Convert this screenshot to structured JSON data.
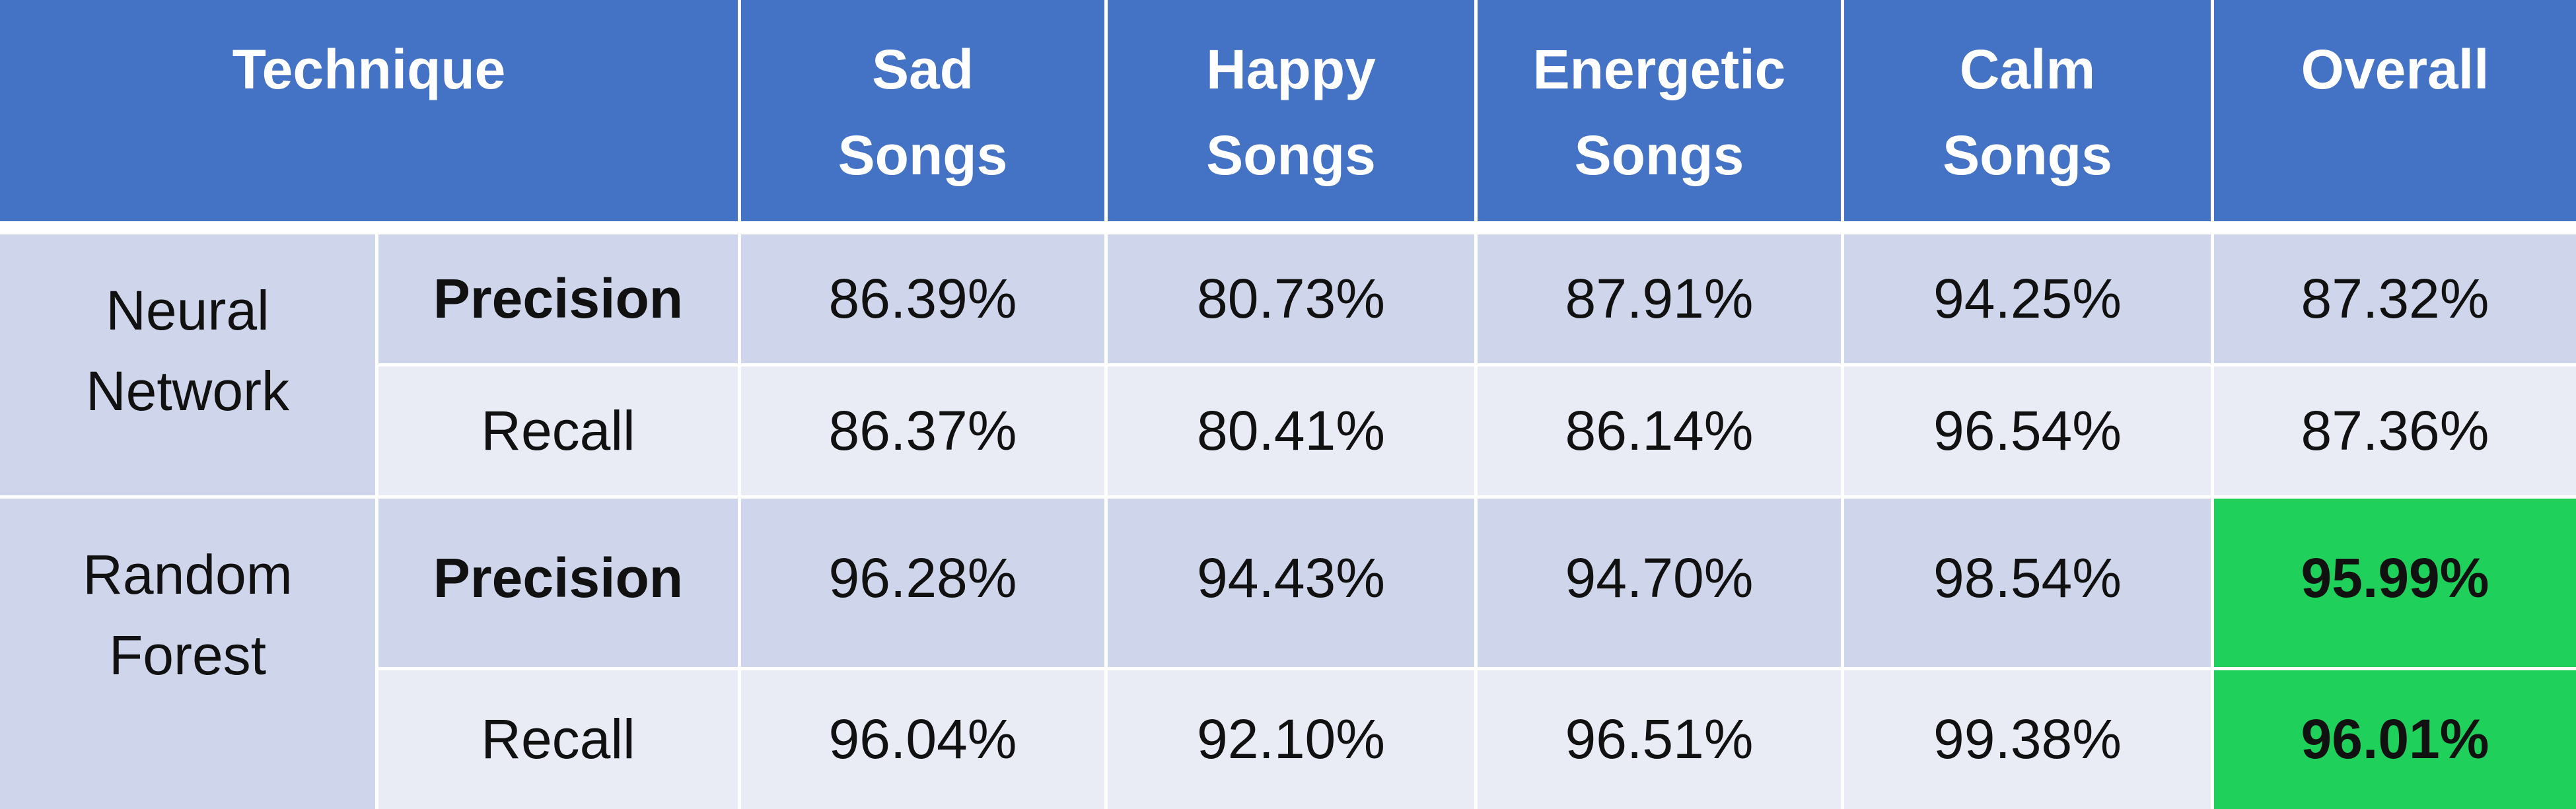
{
  "chart_data": {
    "type": "table",
    "columns": [
      "Technique",
      "Sad Songs",
      "Happy Songs",
      "Energetic Songs",
      "Calm Songs",
      "Overall"
    ],
    "header_lines": {
      "technique": "Technique",
      "sad": [
        "Sad",
        "Songs"
      ],
      "happy": [
        "Happy",
        "Songs"
      ],
      "energetic": [
        "Energetic",
        "Songs"
      ],
      "calm": [
        "Calm",
        "Songs"
      ],
      "overall": "Overall"
    },
    "groups": [
      {
        "name_lines": [
          "Neural",
          "Network"
        ],
        "rows": [
          {
            "metric": "Precision",
            "values": [
              "86.39%",
              "80.73%",
              "87.91%",
              "94.25%",
              "87.32%"
            ]
          },
          {
            "metric": "Recall",
            "values": [
              "86.37%",
              "80.41%",
              "86.14%",
              "96.54%",
              "87.36%"
            ]
          }
        ]
      },
      {
        "name_lines": [
          "Random",
          "Forest"
        ],
        "rows": [
          {
            "metric": "Precision",
            "values": [
              "96.28%",
              "94.43%",
              "94.70%",
              "98.54%",
              "95.99%"
            ]
          },
          {
            "metric": "Recall",
            "values": [
              "96.04%",
              "92.10%",
              "96.51%",
              "99.38%",
              "96.01%"
            ]
          }
        ]
      }
    ],
    "highlight": "Random Forest Overall (Precision and Recall)"
  },
  "colors": {
    "header": "#4472c4",
    "band_dark": "#cfd5ea",
    "band_light": "#e9ebf5",
    "highlight": "#1fd05a"
  }
}
